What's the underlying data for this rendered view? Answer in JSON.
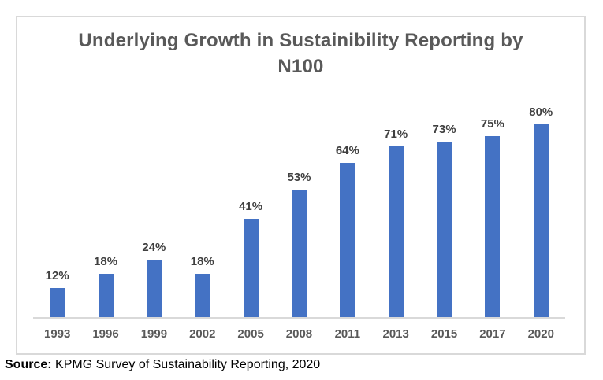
{
  "chart_data": {
    "type": "bar",
    "title": "Underlying Growth in Sustainibility Reporting by N100",
    "categories": [
      "1993",
      "1996",
      "1999",
      "2002",
      "2005",
      "2008",
      "2011",
      "2013",
      "2015",
      "2017",
      "2020"
    ],
    "values": [
      12,
      18,
      24,
      18,
      41,
      53,
      64,
      71,
      73,
      75,
      80
    ],
    "unit": "%",
    "bar_color": "#4472C4",
    "data_labels": [
      "12%",
      "18%",
      "24%",
      "18%",
      "41%",
      "53%",
      "64%",
      "71%",
      "73%",
      "75%",
      "80%"
    ],
    "ylim": [
      0,
      98
    ],
    "y_axis_visible": false,
    "grid": false,
    "legend": false,
    "axis_line_color": "#D9D9D9",
    "title_color": "#595959",
    "label_color": "#404040",
    "tick_label_color": "#595959"
  },
  "source": {
    "label": "Source:",
    "text": " KPMG Survey of Sustainability Reporting, 2020"
  }
}
